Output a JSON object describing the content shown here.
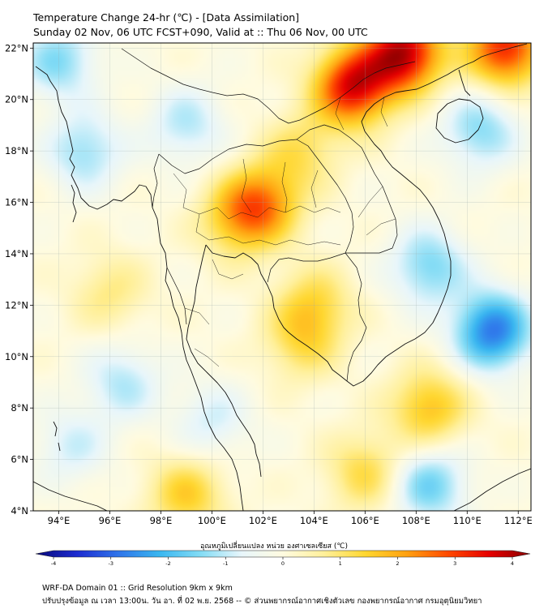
{
  "header": {
    "title": "Temperature Change 24-hr (℃) - [Data Assimilation]",
    "subtitle": "Sunday 02 Nov, 06 UTC FCST+090, Valid at :: Thu 06 Nov, 00 UTC"
  },
  "axes": {
    "lat_labels": [
      "22°N",
      "20°N",
      "18°N",
      "16°N",
      "14°N",
      "12°N",
      "10°N",
      "8°N",
      "6°N",
      "4°N"
    ],
    "lat_values": [
      22,
      20,
      18,
      16,
      14,
      12,
      10,
      8,
      6,
      4
    ],
    "lon_labels": [
      "94°E",
      "96°E",
      "98°E",
      "100°E",
      "102°E",
      "104°E",
      "106°E",
      "108°E",
      "110°E",
      "112°E"
    ],
    "lon_values": [
      94,
      96,
      98,
      100,
      102,
      104,
      106,
      108,
      110,
      112
    ],
    "lon_range": [
      93,
      112.5
    ],
    "lat_range": [
      4,
      22.2
    ]
  },
  "field": {
    "description_units": "°C",
    "hotspots": [
      {
        "lon": 105.5,
        "lat": 20.5,
        "value": 3.3
      },
      {
        "lon": 107.5,
        "lat": 21.8,
        "value": 3.6
      },
      {
        "lon": 111.5,
        "lat": 22.0,
        "value": 3.0
      },
      {
        "lon": 102.0,
        "lat": 16.0,
        "value": 1.9
      },
      {
        "lon": 101.0,
        "lat": 15.3,
        "value": 1.4
      },
      {
        "lon": 103.5,
        "lat": 18.0,
        "value": 1.0
      },
      {
        "lon": 104.0,
        "lat": 12.0,
        "value": 1.2
      },
      {
        "lon": 103.5,
        "lat": 10.5,
        "value": 1.0
      },
      {
        "lon": 108.5,
        "lat": 8.0,
        "value": 1.6
      },
      {
        "lon": 106.0,
        "lat": 5.5,
        "value": 1.2
      },
      {
        "lon": 99.0,
        "lat": 4.6,
        "value": 1.4
      },
      {
        "lon": 96.0,
        "lat": 12.5,
        "value": 0.8
      },
      {
        "lon": 110.5,
        "lat": 18.8,
        "value": -1.3
      },
      {
        "lon": 111.0,
        "lat": 11.0,
        "value": -2.6
      },
      {
        "lon": 108.5,
        "lat": 13.5,
        "value": -1.4
      },
      {
        "lon": 95.0,
        "lat": 18.0,
        "value": -1.2
      },
      {
        "lon": 94.0,
        "lat": 21.5,
        "value": -1.3
      },
      {
        "lon": 99.0,
        "lat": 19.0,
        "value": -1.0
      },
      {
        "lon": 96.5,
        "lat": 9.0,
        "value": -1.0
      },
      {
        "lon": 100.0,
        "lat": 7.5,
        "value": -0.8
      },
      {
        "lon": 108.5,
        "lat": 5.0,
        "value": -1.5
      },
      {
        "lon": 94.5,
        "lat": 6.5,
        "value": -0.8
      }
    ]
  },
  "colorbar": {
    "title": "อุณหภูมิเปลี่ยนแปลง หน่วย องศาเซลเซียส (℃)",
    "tick_values": [
      -4,
      -3,
      -2,
      -1,
      0,
      1,
      2,
      3,
      4
    ],
    "tick_labels": [
      "-4",
      "-3",
      "-2",
      "-1",
      "0",
      "1",
      "2",
      "3",
      "4"
    ],
    "colors": [
      "#08087a",
      "#1c2bd0",
      "#2f74ea",
      "#39b6f0",
      "#83dcf5",
      "#e8f6fb",
      "#fffbe0",
      "#fff09a",
      "#ffd730",
      "#ffa110",
      "#ff4a00",
      "#e60000",
      "#8a0000"
    ]
  },
  "footer": {
    "line1": "WRF-DA Domain 01 :: Grid Resolution 9km x 9km",
    "line2": "ปรับปรุงข้อมูล ณ เวลา 13:00น. วัน อา. ที่ 02 พ.ย. 2568 -- © ส่วนพยากรณ์อากาศเชิงตัวเลข กองพยากรณ์อากาศ กรมอุตุนิยมวิทยา"
  }
}
